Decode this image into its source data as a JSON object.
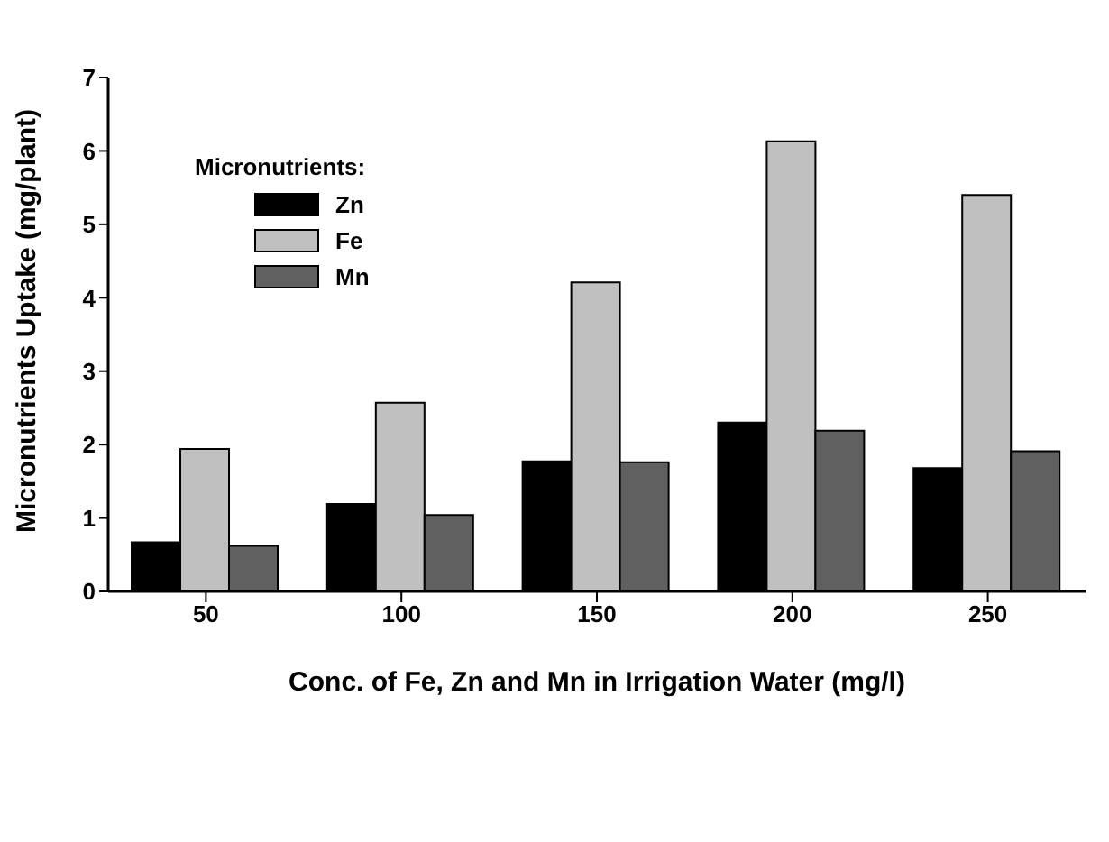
{
  "chart_data": {
    "type": "bar",
    "xlabel": "Conc. of Fe, Zn and Mn in Irrigation Water (mg/l)",
    "ylabel": "Micronutrients Uptake (mg/plant)",
    "legend_title": "Micronutrients:",
    "legend": "top left",
    "grid": false,
    "categories": [
      "50",
      "100",
      "150",
      "200",
      "250"
    ],
    "series": [
      {
        "name": "Zn",
        "color": "#000000",
        "values": [
          0.67,
          1.19,
          1.77,
          2.3,
          1.68
        ]
      },
      {
        "name": "Fe",
        "color": "#c0c0c0",
        "values": [
          1.94,
          2.57,
          4.21,
          6.13,
          5.4
        ]
      },
      {
        "name": "Mn",
        "color": "#606060",
        "values": [
          0.62,
          1.04,
          1.76,
          2.19,
          1.91
        ]
      }
    ],
    "ylim": [
      0,
      7
    ],
    "yticks": [
      0,
      1,
      2,
      3,
      4,
      5,
      6,
      7
    ]
  }
}
